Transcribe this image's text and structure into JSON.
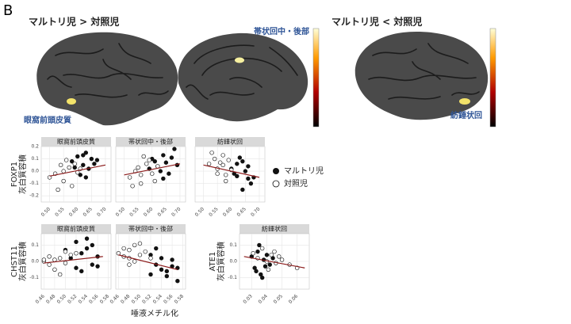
{
  "figure": {
    "panel": "B",
    "headings": [
      "マルトリ児 > 対照児",
      "マルトリ児 < 対照児"
    ],
    "regions": [
      "帯状回中・後部",
      "眼窩前頭皮質",
      "紡錘状回"
    ],
    "xlabel": "唾液メチル化",
    "legend": [
      "マルトリ児",
      "対照児"
    ]
  },
  "chart_data": [
    {
      "type": "scatter",
      "title": "眼窩前頭皮質",
      "ylabel": [
        "FOXP1",
        "灰白質容積"
      ],
      "xlim": [
        0.47,
        0.72
      ],
      "ylim": [
        -0.25,
        0.2
      ],
      "xticks": [
        {
          "value": 0.5,
          "label": "0.50"
        },
        0.55,
        {
          "value": 0.6,
          "label": "0.60"
        },
        0.65,
        {
          "value": 0.7,
          "label": "0.70"
        }
      ],
      "yticks": [
        -0.2,
        -0.1,
        {
          "value": 0,
          "label": "0.0"
        },
        0.1,
        0.2
      ],
      "series": [
        {
          "x": [
            0.58,
            0.6,
            0.62,
            0.63,
            0.64,
            0.65,
            0.66,
            0.61,
            0.59,
            0.67,
            0.63,
            0.62
          ],
          "values": [
            0.08,
            0.12,
            0.05,
            0.15,
            0.02,
            0.1,
            0.06,
            -0.03,
            0.03,
            0.09,
            -0.05,
            0.13
          ]
        },
        {
          "x": [
            0.52,
            0.54,
            0.55,
            0.57,
            0.58,
            0.56,
            0.6,
            0.53,
            0.59,
            0.61,
            0.55,
            0.5
          ],
          "values": [
            -0.02,
            0.05,
            -0.08,
            0.03,
            -0.12,
            0.09,
            -0.01,
            -0.15,
            0.06,
            0.02,
            0.0,
            -0.05
          ]
        }
      ],
      "trend": {
        "x": [
          0.5,
          0.7
        ],
        "y": [
          -0.04,
          0.05
        ]
      }
    },
    {
      "type": "scatter",
      "title": "帯状回中・後部",
      "xlim": [
        0.47,
        0.72
      ],
      "ylim": [
        -0.25,
        0.2
      ],
      "xticks": [
        {
          "value": 0.5,
          "label": "0.50"
        },
        0.55,
        {
          "value": 0.6,
          "label": "0.60"
        },
        0.65,
        {
          "value": 0.7,
          "label": "0.70"
        }
      ],
      "yticks": [
        -0.2,
        -0.1,
        {
          "value": 0,
          "label": "0.0"
        },
        0.1,
        0.2
      ],
      "series": [
        {
          "x": [
            0.6,
            0.62,
            0.64,
            0.65,
            0.66,
            0.68,
            0.63,
            0.61,
            0.67,
            0.69,
            0.64,
            0.59
          ],
          "values": [
            0.1,
            0.04,
            0.13,
            0.07,
            -0.02,
            0.18,
            0.0,
            0.08,
            0.11,
            0.05,
            -0.06,
            0.02
          ]
        },
        {
          "x": [
            0.52,
            0.55,
            0.56,
            0.58,
            0.57,
            0.6,
            0.54,
            0.59,
            0.53,
            0.62,
            0.56,
            0.61
          ],
          "values": [
            -0.05,
            0.03,
            -0.1,
            0.06,
            0.12,
            -0.02,
            0.0,
            0.09,
            -0.12,
            0.04,
            -0.03,
            -0.08
          ]
        }
      ],
      "trend": {
        "x": [
          0.5,
          0.7
        ],
        "y": [
          -0.03,
          0.06
        ]
      }
    },
    {
      "type": "scatter",
      "title": "紡錘状回",
      "xlim": [
        0.47,
        0.72
      ],
      "ylim": [
        -0.25,
        0.2
      ],
      "xticks": [
        {
          "value": 0.5,
          "label": "0.50"
        },
        0.55,
        {
          "value": 0.6,
          "label": "0.60"
        },
        0.65,
        {
          "value": 0.7,
          "label": "0.70"
        }
      ],
      "yticks": [
        -0.2,
        -0.1,
        {
          "value": 0,
          "label": "0.0"
        },
        0.1,
        0.2
      ],
      "series": [
        {
          "x": [
            0.6,
            0.62,
            0.64,
            0.66,
            0.65,
            0.67,
            0.63,
            0.61,
            0.68,
            0.64,
            0.66,
            0.62
          ],
          "values": [
            0.02,
            -0.04,
            0.08,
            -0.06,
            0.0,
            -0.1,
            0.11,
            -0.02,
            -0.05,
            -0.15,
            0.04,
            0.06
          ]
        },
        {
          "x": [
            0.52,
            0.54,
            0.55,
            0.57,
            0.58,
            0.56,
            0.6,
            0.53,
            0.59,
            0.55,
            0.57,
            0.58
          ],
          "values": [
            0.06,
            0.1,
            0.02,
            0.13,
            -0.03,
            0.07,
            0.01,
            0.15,
            0.09,
            -0.02,
            0.05,
            -0.08
          ]
        }
      ],
      "trend": {
        "x": [
          0.5,
          0.7
        ],
        "y": [
          0.05,
          -0.05
        ]
      }
    },
    {
      "type": "scatter",
      "title": "眼窩前頭皮質",
      "ylabel": [
        "CHST11",
        "灰白質容積"
      ],
      "xlim": [
        0.455,
        0.585
      ],
      "ylim": [
        -0.17,
        0.17
      ],
      "xticks": [
        0.46,
        0.48,
        {
          "value": 0.5,
          "label": "0.50"
        },
        0.52,
        0.54,
        0.56,
        0.58
      ],
      "yticks": [
        -0.1,
        {
          "value": 0,
          "label": "0.0"
        },
        0.1
      ],
      "series": [
        {
          "x": [
            0.52,
            0.53,
            0.54,
            0.55,
            0.56,
            0.53,
            0.51,
            0.54,
            0.55,
            0.52,
            0.56,
            0.5
          ],
          "values": [
            0.12,
            0.05,
            0.08,
            -0.02,
            0.03,
            -0.06,
            0.02,
            0.14,
            0.1,
            -0.04,
            -0.03,
            0.07
          ]
        },
        {
          "x": [
            0.46,
            0.47,
            0.48,
            0.49,
            0.5,
            0.48,
            0.47,
            0.51,
            0.49,
            0.5,
            0.52,
            0.46
          ],
          "values": [
            0.0,
            0.03,
            -0.05,
            0.02,
            0.06,
            0.01,
            -0.02,
            0.04,
            -0.08,
            -0.01,
            0.05,
            0.01
          ]
        }
      ],
      "trend": {
        "x": [
          0.46,
          0.57
        ],
        "y": [
          -0.01,
          0.03
        ]
      }
    },
    {
      "type": "scatter",
      "title": "帯状回中・後部",
      "xlim": [
        0.455,
        0.585
      ],
      "ylim": [
        -0.17,
        0.17
      ],
      "xticks": [
        0.46,
        0.48,
        {
          "value": 0.5,
          "label": "0.50"
        },
        0.52,
        0.54,
        0.56,
        0.58
      ],
      "yticks": [
        -0.1,
        {
          "value": 0,
          "label": "0.0"
        },
        0.1
      ],
      "series": [
        {
          "x": [
            0.52,
            0.53,
            0.54,
            0.55,
            0.56,
            0.57,
            0.53,
            0.55,
            0.54,
            0.56,
            0.52,
            0.57
          ],
          "values": [
            0.04,
            -0.02,
            0.02,
            -0.06,
            -0.03,
            -0.12,
            0.08,
            -0.09,
            -0.05,
            0.01,
            -0.08,
            -0.04
          ]
        },
        {
          "x": [
            0.46,
            0.47,
            0.48,
            0.49,
            0.5,
            0.48,
            0.47,
            0.51,
            0.49,
            0.5,
            0.52,
            0.48
          ],
          "values": [
            0.05,
            0.08,
            0.02,
            0.1,
            0.04,
            -0.02,
            0.03,
            0.06,
            0.0,
            0.11,
            0.02,
            0.07
          ]
        }
      ],
      "trend": {
        "x": [
          0.46,
          0.57
        ],
        "y": [
          0.04,
          -0.05
        ]
      }
    },
    {
      "type": "scatter",
      "title": "紡錘状回",
      "ylabel": [
        "ATE1",
        "灰白質容積"
      ],
      "xlim": [
        0.022,
        0.068
      ],
      "ylim": [
        -0.17,
        0.17
      ],
      "xticks": [
        0.03,
        0.04,
        0.05,
        0.06
      ],
      "yticks": [
        -0.1,
        {
          "value": 0,
          "label": "0.0"
        },
        0.1
      ],
      "series": [
        {
          "x": [
            0.03,
            0.032,
            0.034,
            0.036,
            0.038,
            0.04,
            0.042,
            0.035,
            0.033,
            0.039,
            0.044,
            0.037
          ],
          "values": [
            0.03,
            -0.04,
            0.06,
            -0.08,
            0.01,
            0.04,
            -0.02,
            0.1,
            -0.06,
            -0.03,
            0.02,
            -0.1
          ]
        },
        {
          "x": [
            0.031,
            0.034,
            0.037,
            0.04,
            0.043,
            0.046,
            0.048,
            0.05,
            0.041,
            0.045,
            0.055,
            0.06
          ],
          "values": [
            0.05,
            0.02,
            0.08,
            0.0,
            0.04,
            -0.01,
            0.03,
            0.01,
            -0.05,
            0.06,
            -0.02,
            -0.04
          ]
        }
      ],
      "trend": {
        "x": [
          0.025,
          0.065
        ],
        "y": [
          0.03,
          -0.04
        ]
      }
    }
  ]
}
